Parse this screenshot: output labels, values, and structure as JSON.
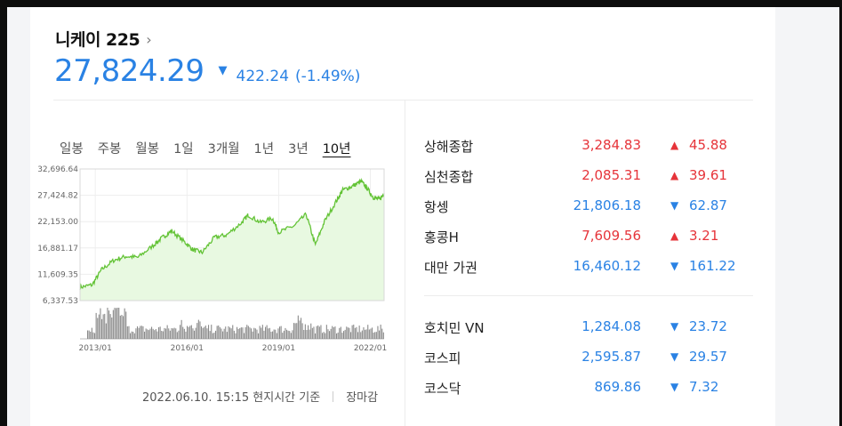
{
  "header": {
    "title": "니케이 225",
    "chevron": "›",
    "price": "27,824.29",
    "change": "422.24",
    "change_pct": "(-1.49%)",
    "direction": "down"
  },
  "tabs": [
    {
      "label": "일봉",
      "active": false
    },
    {
      "label": "주봉",
      "active": false
    },
    {
      "label": "월봉",
      "active": false
    },
    {
      "label": "1일",
      "active": false
    },
    {
      "label": "3개월",
      "active": false
    },
    {
      "label": "1년",
      "active": false
    },
    {
      "label": "3년",
      "active": false
    },
    {
      "label": "10년",
      "active": true
    }
  ],
  "chart_data": {
    "type": "area",
    "y_ticks": [
      "32,696.64",
      "27,424.82",
      "22,153.00",
      "16,881.17",
      "11,609.35",
      "6,337.53"
    ],
    "x_ticks": [
      "2013/01",
      "2016/01",
      "2019/01",
      "2022/01"
    ],
    "ylim": [
      6337.53,
      32696.64
    ],
    "x": [
      2012.5,
      2012.9,
      2013.2,
      2013.6,
      2014.0,
      2014.4,
      2014.9,
      2015.2,
      2015.5,
      2015.9,
      2016.2,
      2016.5,
      2016.9,
      2017.3,
      2017.8,
      2018.0,
      2018.4,
      2018.8,
      2019.0,
      2019.5,
      2019.9,
      2020.2,
      2020.5,
      2020.9,
      2021.1,
      2021.4,
      2021.7,
      2021.9,
      2022.1,
      2022.3,
      2022.45
    ],
    "values": [
      9000,
      9500,
      12500,
      14400,
      15200,
      15000,
      17400,
      19000,
      20300,
      18200,
      16500,
      16000,
      19000,
      19500,
      22000,
      23500,
      22000,
      22800,
      20000,
      21300,
      23600,
      17500,
      22200,
      26400,
      28500,
      29200,
      30200,
      28800,
      27000,
      26600,
      27800
    ],
    "volume_series": "trading volume",
    "fill_color": "#e8f9e1",
    "line_color": "#63c336"
  },
  "footer": {
    "timestamp": "2022.06.10. 15:15 현지시간 기준",
    "status": "장마감"
  },
  "indices_group1": [
    {
      "name": "상해종합",
      "value": "3,284.83",
      "change": "45.88",
      "dir": "up"
    },
    {
      "name": "심천종합",
      "value": "2,085.31",
      "change": "39.61",
      "dir": "up"
    },
    {
      "name": "항셍",
      "value": "21,806.18",
      "change": "62.87",
      "dir": "down"
    },
    {
      "name": "홍콩H",
      "value": "7,609.56",
      "change": "3.21",
      "dir": "up"
    },
    {
      "name": "대만 가권",
      "value": "16,460.12",
      "change": "161.22",
      "dir": "down"
    }
  ],
  "indices_group2": [
    {
      "name": "호치민 VN",
      "value": "1,284.08",
      "change": "23.72",
      "dir": "down"
    },
    {
      "name": "코스피",
      "value": "2,595.87",
      "change": "29.57",
      "dir": "down"
    },
    {
      "name": "코스닥",
      "value": "869.86",
      "change": "7.32",
      "dir": "down"
    }
  ],
  "colors": {
    "up": "#e6343a",
    "down": "#2a82e4",
    "accent": "#2a82e4"
  }
}
